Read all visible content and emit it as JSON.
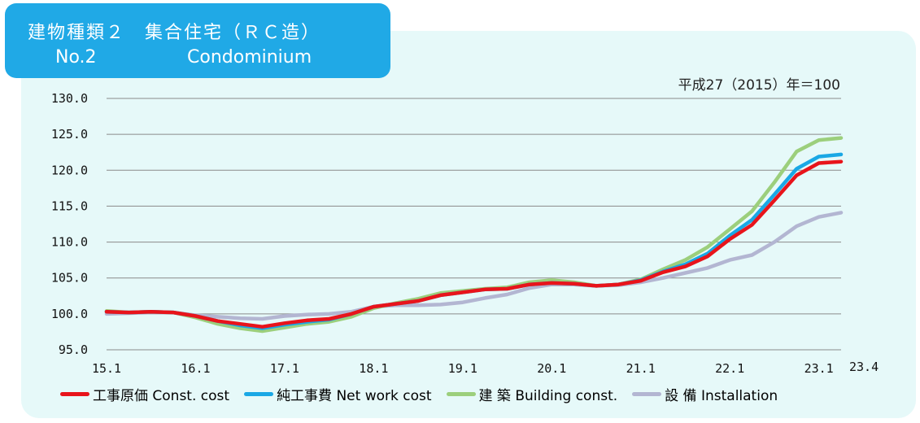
{
  "header": {
    "title_jp": "建物種類２　集合住宅（ＲＣ造）",
    "number": "No.2",
    "title_en": "Condominium"
  },
  "base_note": "平成27（2015）年＝100",
  "colors": {
    "panel_bg": "#e6f9f9",
    "title_bg": "#20a9e6",
    "const_cost": "#e8141b",
    "net_work_cost": "#1aa8e5",
    "building_const": "#9ccf7c",
    "installation": "#b3b6d2"
  },
  "chart_data": {
    "type": "line",
    "xlabel": "",
    "ylabel": "",
    "ylim": [
      95.0,
      130.0
    ],
    "y_ticks": [
      "95.0",
      "100.0",
      "105.0",
      "110.0",
      "115.0",
      "120.0",
      "125.0",
      "130.0"
    ],
    "x_tick_labels": [
      "15.1",
      "16.1",
      "17.1",
      "18.1",
      "19.1",
      "20.1",
      "21.1",
      "22.1",
      "23.1",
      "23.4"
    ],
    "x_range": [
      "2015-01",
      "2023-04"
    ],
    "grid": "horizontal",
    "legend_position": "bottom",
    "series": [
      {
        "name": "工事原価 Const. cost",
        "color": "#e8141b",
        "points": [
          [
            "2015-01",
            100.3
          ],
          [
            "2015-04",
            100.2
          ],
          [
            "2015-07",
            100.3
          ],
          [
            "2015-10",
            100.2
          ],
          [
            "2016-01",
            99.7
          ],
          [
            "2016-04",
            99.0
          ],
          [
            "2016-07",
            98.6
          ],
          [
            "2016-10",
            98.2
          ],
          [
            "2017-01",
            98.7
          ],
          [
            "2017-04",
            99.1
          ],
          [
            "2017-07",
            99.3
          ],
          [
            "2017-10",
            100.0
          ],
          [
            "2018-01",
            101.0
          ],
          [
            "2018-04",
            101.4
          ],
          [
            "2018-07",
            101.8
          ],
          [
            "2018-10",
            102.6
          ],
          [
            "2019-01",
            103.0
          ],
          [
            "2019-04",
            103.4
          ],
          [
            "2019-07",
            103.5
          ],
          [
            "2019-10",
            104.1
          ],
          [
            "2020-01",
            104.3
          ],
          [
            "2020-04",
            104.2
          ],
          [
            "2020-07",
            103.9
          ],
          [
            "2020-10",
            104.1
          ],
          [
            "2021-01",
            104.6
          ],
          [
            "2021-04",
            105.8
          ],
          [
            "2021-07",
            106.6
          ],
          [
            "2021-10",
            108.0
          ],
          [
            "2022-01",
            110.4
          ],
          [
            "2022-04",
            112.4
          ],
          [
            "2022-07",
            115.8
          ],
          [
            "2022-10",
            119.3
          ],
          [
            "2023-01",
            121.0
          ],
          [
            "2023-04",
            121.2
          ]
        ]
      },
      {
        "name": "純工事費 Net work cost",
        "color": "#1aa8e5",
        "points": [
          [
            "2015-01",
            100.3
          ],
          [
            "2015-04",
            100.2
          ],
          [
            "2015-07",
            100.3
          ],
          [
            "2015-10",
            100.2
          ],
          [
            "2016-01",
            99.7
          ],
          [
            "2016-04",
            99.0
          ],
          [
            "2016-07",
            98.4
          ],
          [
            "2016-10",
            98.0
          ],
          [
            "2017-01",
            98.5
          ],
          [
            "2017-04",
            98.9
          ],
          [
            "2017-07",
            99.2
          ],
          [
            "2017-10",
            100.0
          ],
          [
            "2018-01",
            101.0
          ],
          [
            "2018-04",
            101.4
          ],
          [
            "2018-07",
            101.8
          ],
          [
            "2018-10",
            102.6
          ],
          [
            "2019-01",
            103.0
          ],
          [
            "2019-04",
            103.4
          ],
          [
            "2019-07",
            103.5
          ],
          [
            "2019-10",
            104.1
          ],
          [
            "2020-01",
            104.3
          ],
          [
            "2020-04",
            104.2
          ],
          [
            "2020-07",
            103.9
          ],
          [
            "2020-10",
            104.1
          ],
          [
            "2021-01",
            104.7
          ],
          [
            "2021-04",
            105.9
          ],
          [
            "2021-07",
            106.9
          ],
          [
            "2021-10",
            108.4
          ],
          [
            "2022-01",
            110.9
          ],
          [
            "2022-04",
            113.1
          ],
          [
            "2022-07",
            116.6
          ],
          [
            "2022-10",
            120.2
          ],
          [
            "2023-01",
            121.9
          ],
          [
            "2023-04",
            122.2
          ]
        ]
      },
      {
        "name": "建 築 Building const.",
        "color": "#9ccf7c",
        "points": [
          [
            "2015-01",
            100.4
          ],
          [
            "2015-04",
            100.2
          ],
          [
            "2015-07",
            100.3
          ],
          [
            "2015-10",
            100.2
          ],
          [
            "2016-01",
            99.5
          ],
          [
            "2016-04",
            98.6
          ],
          [
            "2016-07",
            98.0
          ],
          [
            "2016-10",
            97.6
          ],
          [
            "2017-01",
            98.1
          ],
          [
            "2017-04",
            98.6
          ],
          [
            "2017-07",
            98.9
          ],
          [
            "2017-10",
            99.6
          ],
          [
            "2018-01",
            100.8
          ],
          [
            "2018-04",
            101.5
          ],
          [
            "2018-07",
            102.1
          ],
          [
            "2018-10",
            102.9
          ],
          [
            "2019-01",
            103.2
          ],
          [
            "2019-04",
            103.5
          ],
          [
            "2019-07",
            103.7
          ],
          [
            "2019-10",
            104.4
          ],
          [
            "2020-01",
            104.7
          ],
          [
            "2020-04",
            104.4
          ],
          [
            "2020-07",
            103.9
          ],
          [
            "2020-10",
            104.1
          ],
          [
            "2021-01",
            104.8
          ],
          [
            "2021-04",
            106.2
          ],
          [
            "2021-07",
            107.5
          ],
          [
            "2021-10",
            109.3
          ],
          [
            "2022-01",
            111.8
          ],
          [
            "2022-04",
            114.3
          ],
          [
            "2022-07",
            118.3
          ],
          [
            "2022-10",
            122.6
          ],
          [
            "2023-01",
            124.2
          ],
          [
            "2023-04",
            124.5
          ]
        ]
      },
      {
        "name": "設 備 Installation",
        "color": "#b3b6d2",
        "points": [
          [
            "2015-01",
            100.0
          ],
          [
            "2015-04",
            100.1
          ],
          [
            "2015-07",
            100.2
          ],
          [
            "2015-10",
            100.2
          ],
          [
            "2016-01",
            99.8
          ],
          [
            "2016-04",
            99.6
          ],
          [
            "2016-07",
            99.4
          ],
          [
            "2016-10",
            99.3
          ],
          [
            "2017-01",
            99.7
          ],
          [
            "2017-04",
            99.9
          ],
          [
            "2017-07",
            100.0
          ],
          [
            "2017-10",
            100.3
          ],
          [
            "2018-01",
            101.0
          ],
          [
            "2018-04",
            101.2
          ],
          [
            "2018-07",
            101.2
          ],
          [
            "2018-10",
            101.3
          ],
          [
            "2019-01",
            101.6
          ],
          [
            "2019-04",
            102.2
          ],
          [
            "2019-07",
            102.7
          ],
          [
            "2019-10",
            103.6
          ],
          [
            "2020-01",
            104.1
          ],
          [
            "2020-04",
            104.1
          ],
          [
            "2020-07",
            103.9
          ],
          [
            "2020-10",
            104.0
          ],
          [
            "2021-01",
            104.4
          ],
          [
            "2021-04",
            105.0
          ],
          [
            "2021-07",
            105.7
          ],
          [
            "2021-10",
            106.4
          ],
          [
            "2022-01",
            107.5
          ],
          [
            "2022-04",
            108.2
          ],
          [
            "2022-07",
            110.0
          ],
          [
            "2022-10",
            112.2
          ],
          [
            "2023-01",
            113.5
          ],
          [
            "2023-04",
            114.1
          ]
        ]
      }
    ]
  }
}
